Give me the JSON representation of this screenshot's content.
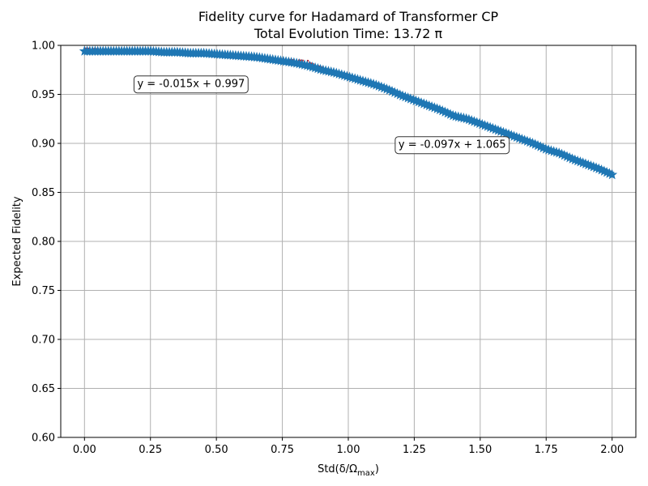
{
  "chart_data": {
    "type": "scatter",
    "title_line1": "Fidelity curve for Hadamard of Transformer CP",
    "title_line2": "Total Evolution Time: 13.72 π",
    "xlabel": "Std(δ/Ω",
    "xlabel_sub": "max",
    "xlabel_close": ")",
    "ylabel": "Expected Fidelity",
    "xlim": [
      -0.09,
      2.09
    ],
    "ylim": [
      0.6,
      1.0
    ],
    "xticks": [
      0.0,
      0.25,
      0.5,
      0.75,
      1.0,
      1.25,
      1.5,
      1.75,
      2.0
    ],
    "xtick_labels": [
      "0.00",
      "0.25",
      "0.50",
      "0.75",
      "1.00",
      "1.25",
      "1.50",
      "1.75",
      "2.00"
    ],
    "yticks": [
      0.6,
      0.65,
      0.7,
      0.75,
      0.8,
      0.85,
      0.9,
      0.95,
      1.0
    ],
    "ytick_labels": [
      "0.60",
      "0.65",
      "0.70",
      "0.75",
      "0.80",
      "0.85",
      "0.90",
      "0.95",
      "1.00"
    ],
    "grid": true,
    "series": [
      {
        "marker": "star",
        "color": "#1f77b4",
        "x": [
          0.0,
          0.05,
          0.1,
          0.15,
          0.2,
          0.25,
          0.3,
          0.35,
          0.4,
          0.45,
          0.5,
          0.55,
          0.6,
          0.65,
          0.7,
          0.75,
          0.8,
          0.85,
          0.9,
          0.95,
          1.0,
          1.05,
          1.1,
          1.15,
          1.2,
          1.25,
          1.3,
          1.35,
          1.4,
          1.45,
          1.5,
          1.55,
          1.6,
          1.65,
          1.7,
          1.75,
          1.8,
          1.85,
          1.9,
          1.95,
          2.0
        ],
        "y": [
          0.994,
          0.994,
          0.994,
          0.994,
          0.994,
          0.994,
          0.993,
          0.993,
          0.992,
          0.992,
          0.991,
          0.99,
          0.989,
          0.988,
          0.986,
          0.984,
          0.982,
          0.979,
          0.975,
          0.972,
          0.968,
          0.964,
          0.96,
          0.955,
          0.949,
          0.944,
          0.939,
          0.934,
          0.928,
          0.925,
          0.92,
          0.915,
          0.91,
          0.905,
          0.9,
          0.894,
          0.89,
          0.884,
          0.879,
          0.874,
          0.868
        ]
      }
    ],
    "fit_lines": [
      {
        "color": "#d62728",
        "slope": -0.015,
        "intercept": 0.997,
        "x_range": [
          0.0,
          0.85
        ]
      },
      {
        "color": "#d62728",
        "slope": -0.097,
        "intercept": 1.065,
        "x_range": [
          0.85,
          2.0
        ]
      }
    ],
    "annotations": [
      {
        "text": "y = -0.015x + 0.997",
        "x": 0.2,
        "y": 0.961
      },
      {
        "text": "y = -0.097x + 1.065",
        "x": 1.19,
        "y": 0.899
      }
    ]
  }
}
